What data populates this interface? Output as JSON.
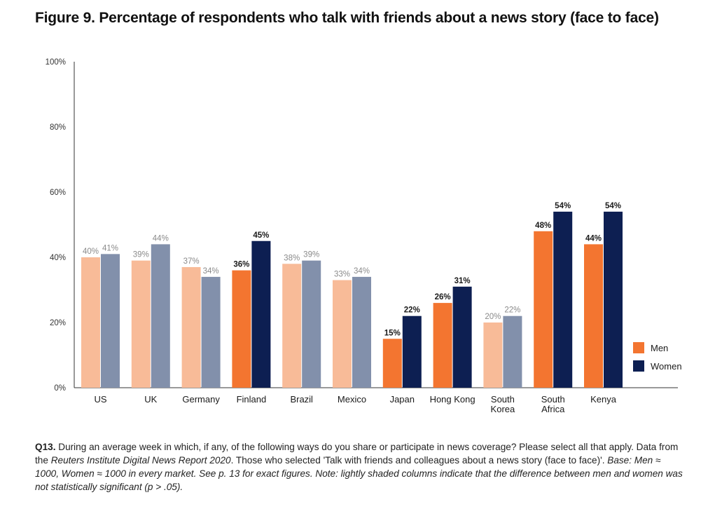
{
  "title": "Figure 9. Percentage of respondents who talk with friends about a news story (face to face)",
  "chart_data": {
    "type": "bar",
    "title": "Figure 9. Percentage of respondents who talk with friends about a news story (face to face)",
    "ylim": [
      0,
      100
    ],
    "yticks": [
      "0%",
      "20%",
      "40%",
      "60%",
      "80%",
      "100%"
    ],
    "ytick_values": [
      0,
      20,
      40,
      60,
      80,
      100
    ],
    "categories": [
      [
        "US"
      ],
      [
        "UK"
      ],
      [
        "Germany"
      ],
      [
        "Finland"
      ],
      [
        "Brazil"
      ],
      [
        "Mexico"
      ],
      [
        "Japan"
      ],
      [
        "Hong Kong"
      ],
      [
        "South",
        "Korea"
      ],
      [
        "South",
        "Africa"
      ],
      [
        "Kenya"
      ]
    ],
    "significant": [
      false,
      false,
      false,
      true,
      false,
      false,
      true,
      true,
      false,
      true,
      true
    ],
    "series": [
      {
        "name": "Men",
        "values": [
          40,
          39,
          37,
          36,
          38,
          33,
          15,
          26,
          20,
          48,
          44
        ]
      },
      {
        "name": "Women",
        "values": [
          41,
          44,
          34,
          45,
          39,
          34,
          22,
          31,
          22,
          54,
          54
        ]
      }
    ],
    "legend": [
      {
        "name": "Men"
      },
      {
        "name": "Women"
      }
    ],
    "colors": {
      "men": "#f37530",
      "women": "#0d1f52",
      "men_light": "#f8bb98",
      "women_light": "#8290ab",
      "label_light": "#8a8a8a",
      "label_dark": "#1a1a1a",
      "axis": "#333333"
    }
  },
  "note": {
    "q": "Q13.",
    "text1": " During an average week in which, if any, of the following ways do you share or participate in news coverage? Please select all that apply. Data from the ",
    "source": "Reuters Institute Digital News Report 2020",
    "text2": ". Those who selected 'Talk with friends and colleagues about a news story (face to face)'. ",
    "italic": "Base: Men ≈ 1000, Women ≈ 1000 in every market. See p. 13 for exact figures. Note: lightly shaded columns indicate that the difference between men and women was not statistically significant (p > .05)."
  }
}
